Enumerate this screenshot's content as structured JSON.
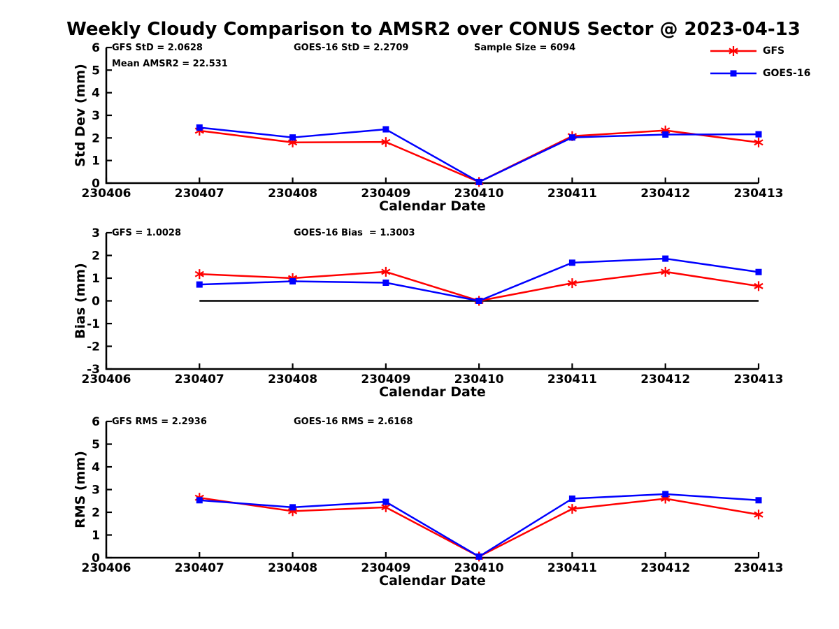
{
  "title": "Weekly Cloudy Comparison to AMSR2 over CONUS Sector @ 2023-04-13",
  "colors": {
    "gfs": "#ff0000",
    "goes16": "#0000ff",
    "axis": "#000000",
    "zero_line": "#000000",
    "text": "#000000"
  },
  "legend": {
    "items": [
      {
        "label": "GFS",
        "color": "#ff0000",
        "marker": "star"
      },
      {
        "label": "GOES-16",
        "color": "#0000ff",
        "marker": "square"
      }
    ]
  },
  "chart_data": [
    {
      "type": "line",
      "ylabel": "Std Dev (mm)",
      "xlabel": "Calendar Date",
      "ylim": [
        0,
        6
      ],
      "yticks": [
        0,
        1,
        2,
        3,
        4,
        5,
        6
      ],
      "grid": false,
      "categories": [
        "230406",
        "230407",
        "230408",
        "230409",
        "230410",
        "230411",
        "230412",
        "230413"
      ],
      "annotations": [
        {
          "text": "GFS StD = 2.0628",
          "slot": "left",
          "row": 0
        },
        {
          "text": "GOES-16 StD = 2.2709",
          "slot": "mid",
          "row": 0
        },
        {
          "text": "Sample Size = 6094",
          "slot": "right",
          "row": 0
        },
        {
          "text": "Mean AMSR2 = 22.531",
          "slot": "left",
          "row": 1
        }
      ],
      "zero_line": false,
      "series": [
        {
          "name": "GFS",
          "color": "#ff0000",
          "marker": "star",
          "x": [
            "230407",
            "230408",
            "230409",
            "230410",
            "230411",
            "230412",
            "230413"
          ],
          "values": [
            2.32,
            1.8,
            1.82,
            0.05,
            2.08,
            2.33,
            1.8
          ]
        },
        {
          "name": "GOES-16",
          "color": "#0000ff",
          "marker": "square",
          "x": [
            "230407",
            "230408",
            "230409",
            "230410",
            "230411",
            "230412",
            "230413"
          ],
          "values": [
            2.46,
            2.02,
            2.38,
            0.05,
            2.02,
            2.15,
            2.16
          ]
        }
      ]
    },
    {
      "type": "line",
      "ylabel": "Bias (mm)",
      "xlabel": "Calendar Date",
      "ylim": [
        -3,
        3
      ],
      "yticks": [
        -3,
        -2,
        -1,
        0,
        1,
        2,
        3
      ],
      "grid": false,
      "categories": [
        "230406",
        "230407",
        "230408",
        "230409",
        "230410",
        "230411",
        "230412",
        "230413"
      ],
      "annotations": [
        {
          "text": "GFS = 1.0028",
          "slot": "left",
          "row": 0
        },
        {
          "text": "GOES-16 Bias  = 1.3003",
          "slot": "mid",
          "row": 0
        }
      ],
      "zero_line": true,
      "series": [
        {
          "name": "GFS",
          "color": "#ff0000",
          "marker": "star",
          "x": [
            "230407",
            "230408",
            "230409",
            "230410",
            "230411",
            "230412",
            "230413"
          ],
          "values": [
            1.18,
            1.0,
            1.28,
            0.0,
            0.78,
            1.28,
            0.65
          ]
        },
        {
          "name": "GOES-16",
          "color": "#0000ff",
          "marker": "square",
          "x": [
            "230407",
            "230408",
            "230409",
            "230410",
            "230411",
            "230412",
            "230413"
          ],
          "values": [
            0.72,
            0.86,
            0.8,
            0.0,
            1.68,
            1.86,
            1.27
          ]
        }
      ]
    },
    {
      "type": "line",
      "ylabel": "RMS (mm)",
      "xlabel": "Calendar Date",
      "ylim": [
        0,
        6
      ],
      "yticks": [
        0,
        1,
        2,
        3,
        4,
        5,
        6
      ],
      "grid": false,
      "categories": [
        "230406",
        "230407",
        "230408",
        "230409",
        "230410",
        "230411",
        "230412",
        "230413"
      ],
      "annotations": [
        {
          "text": "GFS RMS = 2.2936",
          "slot": "left",
          "row": 0
        },
        {
          "text": "GOES-16 RMS = 2.6168",
          "slot": "mid",
          "row": 0
        }
      ],
      "zero_line": false,
      "series": [
        {
          "name": "GFS",
          "color": "#ff0000",
          "marker": "star",
          "x": [
            "230407",
            "230408",
            "230409",
            "230410",
            "230411",
            "230412",
            "230413"
          ],
          "values": [
            2.64,
            2.05,
            2.22,
            0.05,
            2.15,
            2.6,
            1.9
          ]
        },
        {
          "name": "GOES-16",
          "color": "#0000ff",
          "marker": "square",
          "x": [
            "230407",
            "230408",
            "230409",
            "230410",
            "230411",
            "230412",
            "230413"
          ],
          "values": [
            2.53,
            2.22,
            2.46,
            0.05,
            2.6,
            2.8,
            2.53
          ]
        }
      ]
    }
  ]
}
